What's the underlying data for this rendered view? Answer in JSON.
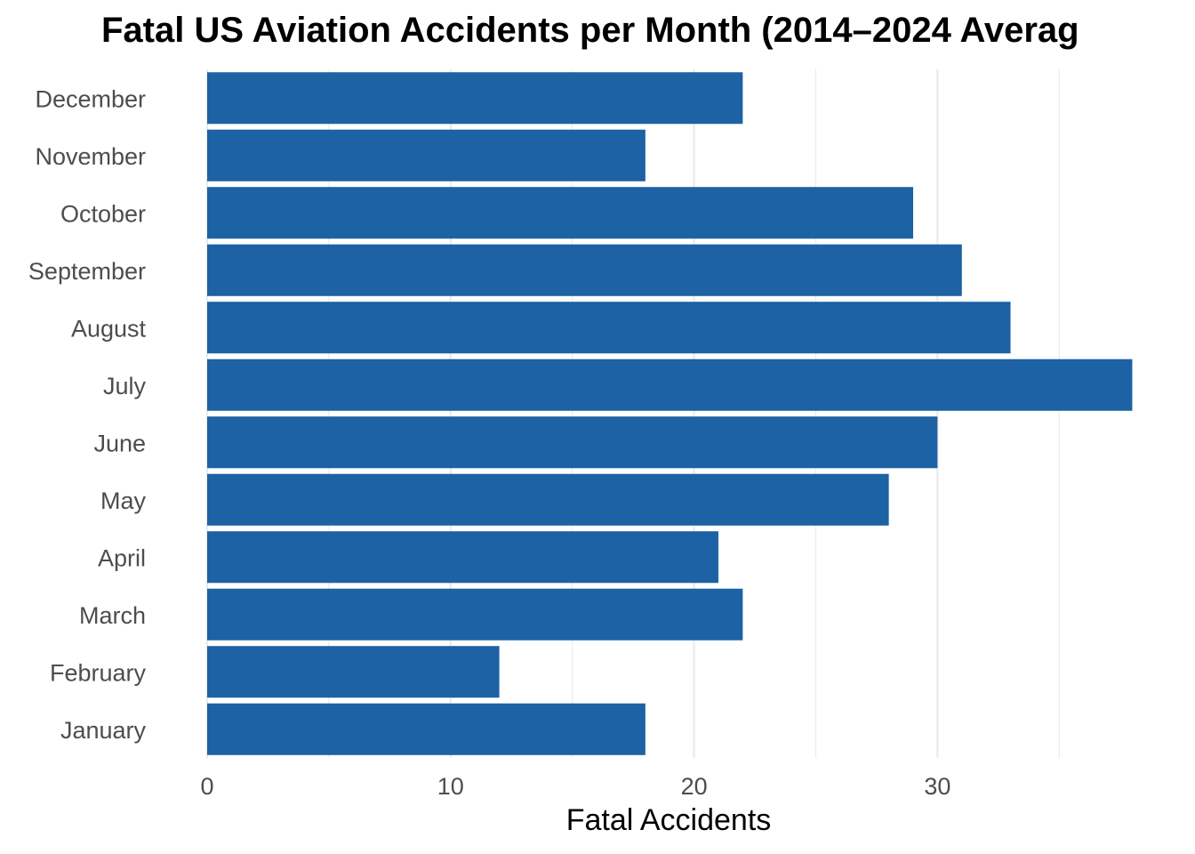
{
  "chart_data": {
    "type": "bar",
    "orientation": "horizontal",
    "title": "Fatal US Aviation Accidents per Month (2014–2024 Averag",
    "xlabel": "Fatal Accidents",
    "ylabel": "",
    "categories": [
      "January",
      "February",
      "March",
      "April",
      "May",
      "June",
      "July",
      "August",
      "September",
      "October",
      "November",
      "December"
    ],
    "values": [
      18,
      12,
      22,
      21,
      28,
      30,
      38,
      33,
      31,
      29,
      18,
      22
    ],
    "xlim": [
      0,
      40
    ],
    "x_ticks": [
      0,
      10,
      20,
      30
    ],
    "x_minor_ticks": [
      5,
      15,
      25,
      35
    ],
    "grid": true,
    "bar_color": "#1c62a4",
    "grid_color": "#ebebeb"
  }
}
